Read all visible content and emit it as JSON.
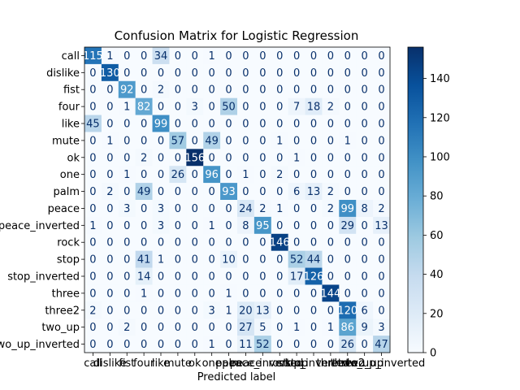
{
  "chart_data": {
    "type": "heatmap",
    "title": "Confusion Matrix for Logistic Regression",
    "xlabel": "Predicted label",
    "ylabel": "",
    "labels": [
      "call",
      "dislike",
      "fist",
      "four",
      "like",
      "mute",
      "ok",
      "one",
      "palm",
      "peace",
      "peace_inverted",
      "rock",
      "stop",
      "stop_inverted",
      "three",
      "three2",
      "two_up",
      "two_up_inverted"
    ],
    "matrix": [
      [
        115,
        1,
        0,
        0,
        34,
        0,
        0,
        1,
        0,
        0,
        0,
        0,
        0,
        0,
        0,
        0,
        0,
        0
      ],
      [
        0,
        130,
        0,
        0,
        0,
        0,
        0,
        0,
        0,
        0,
        0,
        0,
        0,
        0,
        0,
        0,
        0,
        0
      ],
      [
        0,
        0,
        92,
        0,
        2,
        0,
        0,
        0,
        0,
        0,
        0,
        0,
        0,
        0,
        0,
        0,
        0,
        0
      ],
      [
        0,
        0,
        1,
        82,
        0,
        0,
        3,
        0,
        50,
        0,
        0,
        0,
        7,
        18,
        2,
        0,
        0,
        0
      ],
      [
        45,
        0,
        0,
        0,
        99,
        0,
        0,
        0,
        0,
        0,
        0,
        0,
        0,
        0,
        0,
        0,
        0,
        0
      ],
      [
        0,
        1,
        0,
        0,
        0,
        57,
        0,
        49,
        0,
        0,
        0,
        1,
        0,
        0,
        0,
        1,
        0,
        0
      ],
      [
        0,
        0,
        0,
        2,
        0,
        0,
        156,
        0,
        0,
        0,
        0,
        0,
        1,
        0,
        0,
        0,
        0,
        0
      ],
      [
        0,
        0,
        1,
        0,
        0,
        26,
        0,
        96,
        0,
        1,
        0,
        2,
        0,
        0,
        0,
        0,
        0,
        0
      ],
      [
        0,
        2,
        0,
        49,
        0,
        0,
        0,
        0,
        93,
        0,
        0,
        0,
        6,
        13,
        2,
        0,
        0,
        0
      ],
      [
        0,
        0,
        3,
        0,
        3,
        0,
        0,
        0,
        0,
        24,
        2,
        1,
        0,
        0,
        2,
        99,
        8,
        2
      ],
      [
        1,
        0,
        0,
        0,
        3,
        0,
        0,
        1,
        0,
        8,
        95,
        0,
        0,
        0,
        0,
        29,
        0,
        13
      ],
      [
        0,
        0,
        0,
        0,
        0,
        0,
        0,
        0,
        0,
        0,
        0,
        146,
        0,
        0,
        0,
        0,
        0,
        0
      ],
      [
        0,
        0,
        0,
        41,
        1,
        0,
        0,
        0,
        10,
        0,
        0,
        0,
        52,
        44,
        0,
        0,
        0,
        0
      ],
      [
        0,
        0,
        0,
        14,
        0,
        0,
        0,
        0,
        0,
        0,
        0,
        0,
        17,
        126,
        0,
        0,
        0,
        0
      ],
      [
        0,
        0,
        0,
        1,
        0,
        0,
        0,
        0,
        1,
        0,
        0,
        0,
        0,
        0,
        144,
        0,
        0,
        0
      ],
      [
        2,
        0,
        0,
        0,
        0,
        0,
        0,
        3,
        1,
        20,
        13,
        0,
        0,
        0,
        0,
        120,
        6,
        0
      ],
      [
        0,
        0,
        2,
        0,
        0,
        0,
        0,
        0,
        0,
        27,
        5,
        0,
        1,
        0,
        1,
        86,
        9,
        3
      ],
      [
        0,
        0,
        0,
        0,
        0,
        0,
        0,
        1,
        0,
        11,
        52,
        0,
        0,
        0,
        0,
        26,
        0,
        47
      ]
    ],
    "vmin": 0,
    "vmax": 156,
    "colorbar_ticks": [
      0,
      20,
      40,
      60,
      80,
      100,
      120,
      140
    ],
    "colormap": [
      "#f7fbff",
      "#deebf7",
      "#c6dbef",
      "#9ecae1",
      "#6baed6",
      "#4292c6",
      "#2171b5",
      "#08519c",
      "#08306b"
    ],
    "grid": false
  }
}
